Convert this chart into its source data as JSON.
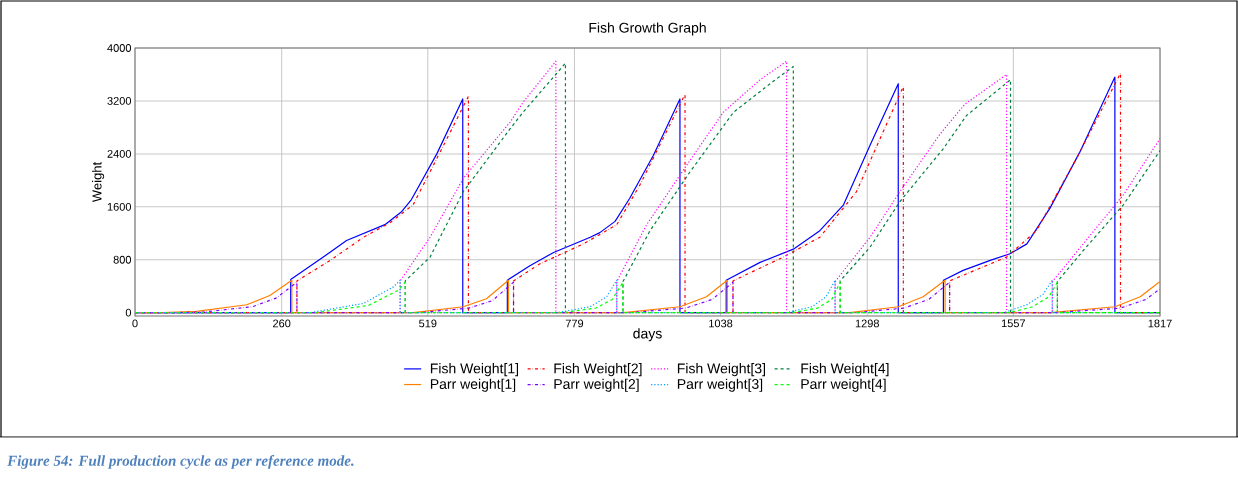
{
  "chart_data": {
    "type": "line",
    "title": "Fish Growth Graph",
    "xlabel": "days",
    "ylabel": "Weight",
    "xlim": [
      0,
      1817
    ],
    "ylim": [
      -50,
      4000
    ],
    "xticks": [
      0,
      260,
      519,
      779,
      1038,
      1298,
      1557,
      1817
    ],
    "yticks": [
      0,
      800,
      1600,
      2400,
      3200,
      4000
    ],
    "grid": true,
    "legend": "bottom",
    "annotations": [
      "Figure 54: Full production cycle as per reference mode."
    ],
    "series": [
      {
        "name": "Fish Weight[1]",
        "color": "#0000ff",
        "line_style": "solid",
        "x": [
          0,
          276,
          276,
          337,
          375,
          443,
          473,
          490,
          535,
          581,
          581,
          660,
          660,
          700,
          742,
          807,
          824,
          851,
          877,
          919,
          966,
          966,
          1048,
          1048,
          1108,
          1167,
          1214,
          1256,
          1303,
          1353,
          1353,
          1433,
          1433,
          1468,
          1516,
          1551,
          1581,
          1622,
          1675,
          1737,
          1737,
          1817
        ],
        "values": [
          0,
          0,
          500,
          860,
          1090,
          1330,
          1530,
          1710,
          2400,
          3230,
          0,
          0,
          490,
          710,
          910,
          1140,
          1210,
          1380,
          1730,
          2380,
          3230,
          0,
          0,
          490,
          760,
          960,
          1240,
          1630,
          2530,
          3460,
          0,
          0,
          490,
          640,
          790,
          890,
          1040,
          1580,
          2430,
          3560,
          0,
          0
        ]
      },
      {
        "name": "Fish Weight[2]",
        "color": "#ff0000",
        "line_style": "dashdot",
        "x": [
          0,
          287,
          287,
          346,
          405,
          452,
          493,
          547,
          591,
          591,
          671,
          671,
          718,
          795,
          854,
          895,
          975,
          975,
          1060,
          1060,
          1149,
          1214,
          1279,
          1362,
          1362,
          1444,
          1444,
          1545,
          1598,
          1669,
          1747,
          1747,
          1817
        ],
        "values": [
          0,
          0,
          480,
          790,
          1140,
          1360,
          1630,
          2530,
          3270,
          0,
          0,
          480,
          740,
          1040,
          1330,
          1930,
          3300,
          0,
          0,
          480,
          840,
          1140,
          1830,
          3420,
          0,
          0,
          480,
          840,
          1240,
          2330,
          3620,
          0,
          0
        ]
      },
      {
        "name": "Fish Weight[3]",
        "color": "#ff00ff",
        "line_style": "dotted",
        "x": [
          0,
          470,
          470,
          523,
          582,
          665,
          688,
          746,
          746,
          854,
          854,
          907,
          978,
          1043,
          1108,
          1155,
          1155,
          1241,
          1241,
          1303,
          1356,
          1427,
          1471,
          1545,
          1545,
          1626,
          1626,
          1681,
          1752,
          1817
        ],
        "values": [
          0,
          0,
          480,
          1140,
          2030,
          2880,
          3180,
          3800,
          0,
          0,
          470,
          1330,
          2230,
          3030,
          3520,
          3800,
          0,
          0,
          470,
          1140,
          1830,
          2700,
          3150,
          3600,
          0,
          0,
          470,
          1040,
          1780,
          2630
        ]
      },
      {
        "name": "Fish Weight[4]",
        "color": "#008040",
        "line_style": "dashed",
        "x": [
          0,
          479,
          479,
          523,
          582,
          665,
          688,
          763,
          763,
          865,
          865,
          913,
          984,
          1061,
          1132,
          1167,
          1167,
          1250,
          1250,
          1303,
          1356,
          1433,
          1474,
          1552,
          1552,
          1635,
          1635,
          1681,
          1752,
          1817
        ],
        "values": [
          0,
          0,
          480,
          840,
          1830,
          2780,
          3030,
          3770,
          0,
          0,
          470,
          1240,
          2130,
          3030,
          3500,
          3720,
          0,
          0,
          480,
          990,
          1680,
          2480,
          2980,
          3520,
          0,
          0,
          470,
          940,
          1630,
          2450
        ]
      },
      {
        "name": "Parr weight[1]",
        "color": "#ff8000",
        "line_style": "solid",
        "x": [
          0,
          50,
          109,
          198,
          239,
          278,
          278,
          420,
          493,
          582,
          623,
          662,
          662,
          800,
          866,
          966,
          1013,
          1050,
          1050,
          1200,
          1267,
          1353,
          1397,
          1436,
          1436,
          1560,
          1622,
          1737,
          1782,
          1817
        ],
        "values": [
          0,
          0,
          20,
          120,
          260,
          490,
          0,
          0,
          0,
          90,
          210,
          490,
          0,
          0,
          0,
          90,
          240,
          490,
          0,
          0,
          0,
          90,
          240,
          490,
          0,
          0,
          0,
          90,
          240,
          470
        ]
      },
      {
        "name": "Parr weight[2]",
        "color": "#8000ff",
        "line_style": "dashdot",
        "x": [
          0,
          60,
          120,
          208,
          250,
          287,
          287,
          430,
          503,
          592,
          633,
          671,
          671,
          810,
          876,
          976,
          1023,
          1060,
          1060,
          1210,
          1277,
          1363,
          1407,
          1444,
          1444,
          1570,
          1632,
          1747,
          1792,
          1817
        ],
        "values": [
          0,
          0,
          10,
          90,
          220,
          460,
          0,
          0,
          0,
          70,
          180,
          460,
          0,
          0,
          0,
          70,
          200,
          460,
          0,
          0,
          0,
          70,
          200,
          460,
          0,
          0,
          0,
          70,
          200,
          360
        ]
      },
      {
        "name": "Parr weight[3]",
        "color": "#00a0ff",
        "line_style": "dotted",
        "x": [
          0,
          290,
          310,
          405,
          458,
          470,
          470,
          748,
          807,
          836,
          854,
          854,
          1155,
          1200,
          1225,
          1241,
          1241,
          1540,
          1581,
          1610,
          1626,
          1626,
          1817
        ],
        "values": [
          0,
          0,
          0,
          140,
          390,
          490,
          0,
          0,
          90,
          240,
          490,
          0,
          0,
          90,
          240,
          490,
          0,
          0,
          120,
          280,
          490,
          0,
          0
        ]
      },
      {
        "name": "Parr weight[4]",
        "color": "#00ff00",
        "line_style": "dashed",
        "x": [
          0,
          300,
          320,
          414,
          467,
          479,
          479,
          758,
          817,
          846,
          865,
          865,
          1165,
          1210,
          1235,
          1250,
          1250,
          1550,
          1591,
          1620,
          1635,
          1635,
          1817
        ],
        "values": [
          0,
          0,
          0,
          110,
          340,
          460,
          0,
          0,
          70,
          200,
          460,
          0,
          0,
          70,
          200,
          460,
          0,
          0,
          90,
          240,
          460,
          0,
          0
        ]
      }
    ]
  }
}
